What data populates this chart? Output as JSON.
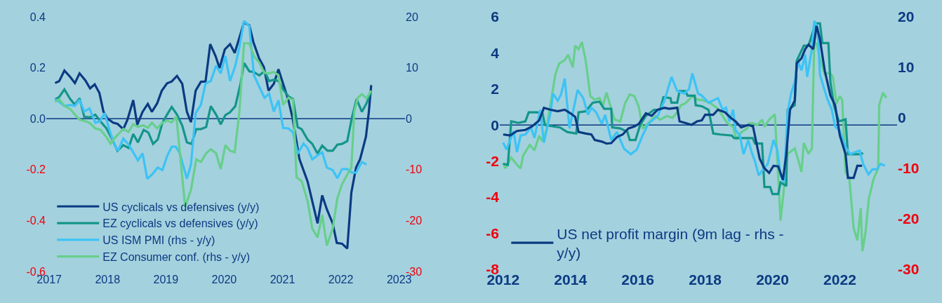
{
  "chart_data": [
    {
      "type": "line",
      "xlim": [
        2016.95,
        2023.1
      ],
      "xticks": [
        2017,
        2018,
        2019,
        2020,
        2021,
        2022,
        2023
      ],
      "ylim": [
        -0.6,
        0.4
      ],
      "yticks": [
        -0.6,
        -0.4,
        -0.2,
        {
          "value": 0,
          "label": "0.0"
        },
        0.2,
        0.4
      ],
      "y2lim": [
        -30,
        20
      ],
      "y2ticks": [
        -30,
        -20,
        -10,
        0,
        10,
        20
      ],
      "grid": false,
      "legend": "bottom left",
      "line_style": "solid",
      "ref_lines": [
        {
          "axis": "y",
          "value": 0,
          "color": "#0b3a82"
        }
      ],
      "series": [
        {
          "name": "US cyclicals vs defensives (y/y)",
          "color": "#0b3a82",
          "x": [
            2017.1,
            2017.17,
            2017.26,
            2017.36,
            2017.44,
            2017.52,
            2017.62,
            2017.7,
            2017.78,
            2017.86,
            2017.93,
            2018.0,
            2018.1,
            2018.17,
            2018.27,
            2018.34,
            2018.44,
            2018.51,
            2018.6,
            2018.69,
            2018.76,
            2018.85,
            2018.93,
            2019.02,
            2019.1,
            2019.19,
            2019.28,
            2019.36,
            2019.43,
            2019.51,
            2019.6,
            2019.68,
            2019.76,
            2019.85,
            2019.92,
            2020.01,
            2020.1,
            2020.18,
            2020.26,
            2020.34,
            2020.43,
            2020.5,
            2020.6,
            2020.68,
            2020.76,
            2020.85,
            2020.93,
            2021.01,
            2021.1,
            2021.17,
            2021.29,
            2021.43,
            2021.52,
            2021.6,
            2021.68,
            2021.76,
            2021.86,
            2021.93,
            2022.02,
            2022.11,
            2022.18,
            2022.26,
            2022.33,
            2022.43,
            2022.48,
            2022.52
          ],
          "values": [
            0.14,
            0.147,
            0.189,
            0.164,
            0.14,
            0.178,
            0.15,
            0.119,
            0.135,
            0.101,
            0.027,
            0.0,
            -0.016,
            -0.02,
            -0.041,
            -0.005,
            0.073,
            -0.024,
            0.027,
            0.058,
            0.027,
            0.06,
            0.11,
            0.139,
            0.146,
            0.168,
            0.137,
            0.027,
            -0.014,
            0.11,
            0.145,
            0.146,
            0.293,
            0.247,
            0.199,
            0.272,
            0.293,
            0.258,
            0.318,
            0.378,
            0.367,
            0.301,
            0.236,
            0.203,
            0.11,
            0.137,
            0.194,
            0.137,
            0.073,
            0.005,
            -0.159,
            -0.247,
            -0.334,
            -0.411,
            -0.301,
            -0.356,
            -0.411,
            -0.488,
            -0.491,
            -0.51,
            -0.29,
            -0.192,
            -0.159,
            -0.071,
            0.027,
            0.132
          ]
        },
        {
          "name": "EZ cyclicals vs defensives (y/y)",
          "color": "#14958a",
          "x": [
            2017.1,
            2017.17,
            2017.26,
            2017.36,
            2017.44,
            2017.52,
            2017.6,
            2017.69,
            2017.79,
            2017.88,
            2017.98,
            2018.07,
            2018.17,
            2018.27,
            2018.36,
            2018.44,
            2018.52,
            2018.62,
            2018.7,
            2018.78,
            2018.86,
            2018.94,
            2019.02,
            2019.1,
            2019.19,
            2019.28,
            2019.36,
            2019.44,
            2019.52,
            2019.6,
            2019.69,
            2019.77,
            2019.86,
            2019.94,
            2020.02,
            2020.1,
            2020.19,
            2020.28,
            2020.34,
            2020.43,
            2020.51,
            2020.6,
            2020.69,
            2020.77,
            2020.85,
            2020.93,
            2021.01,
            2021.1,
            2021.18,
            2021.26,
            2021.33,
            2021.43,
            2021.51,
            2021.6,
            2021.68,
            2021.77,
            2021.86,
            2021.94,
            2022.02,
            2022.11,
            2022.19,
            2022.27,
            2022.36,
            2022.44,
            2022.52
          ],
          "values": [
            0.075,
            0.085,
            0.115,
            0.077,
            0.055,
            0.08,
            0.008,
            0.005,
            0.016,
            -0.011,
            -0.038,
            -0.077,
            -0.126,
            -0.104,
            -0.115,
            -0.06,
            -0.093,
            -0.044,
            -0.055,
            -0.099,
            -0.082,
            -0.016,
            0.016,
            0.046,
            0.016,
            -0.027,
            -0.093,
            -0.099,
            -0.041,
            -0.041,
            -0.033,
            0.049,
            0.016,
            -0.022,
            0.014,
            0.025,
            0.049,
            0.137,
            0.219,
            0.186,
            0.183,
            0.17,
            0.186,
            0.148,
            0.153,
            0.148,
            0.115,
            0.088,
            0.077,
            -0.033,
            -0.042,
            -0.082,
            -0.099,
            -0.137,
            -0.106,
            -0.126,
            -0.126,
            -0.102,
            -0.099,
            -0.088,
            0.005,
            0.077,
            0.027,
            0.06,
            0.11
          ]
        },
        {
          "name": "US ISM PMI (rhs - y/y)",
          "color": "#3cc3f5",
          "axis": "y2",
          "x": [
            2017.1,
            2017.17,
            2017.26,
            2017.36,
            2017.44,
            2017.52,
            2017.6,
            2017.69,
            2017.79,
            2017.87,
            2017.95,
            2018.04,
            2018.12,
            2018.18,
            2018.27,
            2018.36,
            2018.44,
            2018.52,
            2018.6,
            2018.68,
            2018.76,
            2018.86,
            2018.94,
            2019.02,
            2019.1,
            2019.17,
            2019.24,
            2019.36,
            2019.43,
            2019.51,
            2019.6,
            2019.68,
            2019.77,
            2019.86,
            2019.94,
            2020.02,
            2020.1,
            2020.19,
            2020.26,
            2020.34,
            2020.43,
            2020.51,
            2020.6,
            2020.69,
            2020.77,
            2020.85,
            2020.93,
            2021.01,
            2021.1,
            2021.18,
            2021.26,
            2021.36,
            2021.43,
            2021.51,
            2021.6,
            2021.68,
            2021.76,
            2021.86,
            2021.94,
            2022.02,
            2022.11,
            2022.19,
            2022.26,
            2022.36,
            2022.44
          ],
          "values": [
            3.8,
            3.3,
            2.5,
            2.7,
            2.5,
            3.7,
            1.4,
            2.0,
            -0.8,
            -0.5,
            1.1,
            -2.5,
            -5.2,
            -6.3,
            -3.9,
            -5.1,
            -6.6,
            -8.2,
            -6.8,
            -11.8,
            -11.0,
            -9.6,
            -10.1,
            -7.4,
            -5.5,
            -5.5,
            -6.8,
            -11.8,
            -9.0,
            1.1,
            2.7,
            6.9,
            7.4,
            10.4,
            8.9,
            12.3,
            7.4,
            10.4,
            14.0,
            19.2,
            18.2,
            8.5,
            6.3,
            4.1,
            4.9,
            1.4,
            3.6,
            -1.8,
            -1.9,
            -2.7,
            -6.9,
            -4.9,
            -5.8,
            -8.0,
            -7.2,
            -6.6,
            -9.6,
            -10.1,
            -11.7,
            -9.9,
            -9.9,
            -10.6,
            -10.6,
            -8.5,
            -9.0
          ]
        },
        {
          "name": "EZ Consumer conf. (rhs - y/y)",
          "color": "#67cf8b",
          "axis": "y2",
          "x": [
            2017.1,
            2017.17,
            2017.26,
            2017.36,
            2017.44,
            2017.52,
            2017.62,
            2017.69,
            2017.79,
            2017.88,
            2017.98,
            2018.05,
            2018.12,
            2018.19,
            2018.27,
            2018.36,
            2018.44,
            2018.52,
            2018.61,
            2018.69,
            2018.76,
            2018.85,
            2018.94,
            2019.02,
            2019.1,
            2019.18,
            2019.33,
            2019.43,
            2019.52,
            2019.6,
            2019.69,
            2019.77,
            2019.86,
            2019.94,
            2020.02,
            2020.1,
            2020.18,
            2020.26,
            2020.34,
            2020.43,
            2020.51,
            2020.6,
            2020.69,
            2020.77,
            2020.85,
            2020.93,
            2021.01,
            2021.1,
            2021.18,
            2021.24,
            2021.33,
            2021.43,
            2021.51,
            2021.6,
            2021.68,
            2021.76,
            2021.86,
            2021.94,
            2022.02,
            2022.11,
            2022.18,
            2022.23,
            2022.29,
            2022.36,
            2022.44,
            2022.52
          ],
          "values": [
            3.3,
            3.8,
            2.5,
            1.9,
            0.8,
            -0.2,
            -0.5,
            -0.8,
            -1.9,
            -2.2,
            -3.6,
            -4.9,
            -3.8,
            -3.0,
            -2.0,
            -2.6,
            -1.1,
            -1.6,
            -1.3,
            -1.8,
            -0.8,
            -1.9,
            -0.8,
            -0.4,
            -0.7,
            0.4,
            -17.3,
            -14.0,
            -8.0,
            -8.5,
            -6.8,
            -6.0,
            -6.8,
            -9.9,
            -5.2,
            -6.3,
            -6.6,
            1.4,
            14.8,
            14.8,
            12.3,
            11.0,
            9.0,
            8.9,
            9.2,
            8.5,
            2.7,
            4.1,
            3.7,
            -11.5,
            -12.3,
            -16.2,
            -21.6,
            -23.3,
            -18.9,
            -24.9,
            -21.6,
            -15.6,
            -12.9,
            -11.0,
            -9.6,
            1.4,
            4.1,
            4.8,
            4.0,
            5.5
          ]
        }
      ]
    },
    {
      "type": "line",
      "xlim": [
        2011.9,
        2023.7
      ],
      "xticks": [
        2012,
        2014,
        2016,
        2018,
        2020,
        2022
      ],
      "ylim": [
        -8,
        6
      ],
      "yticks": [
        -8,
        -6,
        -4,
        -2,
        0,
        2,
        4,
        6
      ],
      "y2lim": [
        -30,
        20
      ],
      "y2ticks": [
        -30,
        -20,
        -10,
        0,
        10,
        20
      ],
      "grid": false,
      "legend": "bottom left",
      "line_style": "solid",
      "ref_lines": [
        {
          "axis": "y",
          "value": 0,
          "color": "#0b3a82"
        }
      ],
      "series": [
        {
          "color": "#67cf8b",
          "x": [
            2012.0,
            2012.07,
            2012.24,
            2012.41,
            2012.52,
            2012.59,
            2012.79,
            2012.93,
            2013.07,
            2013.17,
            2013.28,
            2013.41,
            2013.55,
            2013.66,
            2013.83,
            2013.93,
            2014.07,
            2014.14,
            2014.24,
            2014.34,
            2014.45,
            2014.59,
            2014.72,
            2014.86,
            2014.97,
            2015.07,
            2015.21,
            2015.31,
            2015.48,
            2015.62,
            2015.76,
            2015.9,
            2016.03,
            2016.14,
            2016.31,
            2016.52,
            2016.66,
            2016.86,
            2017.03,
            2017.17,
            2017.28,
            2017.41,
            2017.62,
            2017.79,
            2017.9,
            2018.17,
            2018.38,
            2018.66,
            2018.83,
            2018.93,
            2019.07,
            2019.24,
            2019.31,
            2019.41,
            2019.55,
            2019.69,
            2019.76,
            2019.9,
            2020.07,
            2020.24,
            2020.38,
            2020.45,
            2020.66,
            2020.76,
            2020.86,
            2020.93,
            2021.07,
            2021.17,
            2021.24,
            2021.31,
            2021.41,
            2021.55,
            2021.69,
            2021.79,
            2021.9,
            2022.0,
            2022.07,
            2022.17,
            2022.28,
            2022.41,
            2022.52,
            2022.62,
            2022.67,
            2022.76,
            2022.86,
            2023.0,
            2023.14,
            2023.17,
            2023.28,
            2023.38
          ],
          "values": [
            -2.1,
            -2.4,
            -1.8,
            -2.2,
            -2.4,
            -1.7,
            -1.1,
            -1.4,
            -0.6,
            -0.9,
            -0.3,
            1.2,
            2.8,
            3.4,
            3.6,
            3.9,
            3.2,
            4.4,
            4.2,
            4.6,
            3.6,
            1.6,
            1.4,
            1.5,
            1.1,
            1.8,
            0.9,
            0.3,
            0.2,
            1.2,
            1.7,
            1.6,
            1.0,
            -0.2,
            0.1,
            0.5,
            0.3,
            0.5,
            0.4,
            0.7,
            1.1,
            1.2,
            1.6,
            1.4,
            1.4,
            1.2,
            0.9,
            0.1,
            -0.1,
            -0.8,
            -0.4,
            -0.2,
            0.1,
            0.1,
            0.0,
            0.3,
            -0.1,
            0.3,
            0.6,
            -5.3,
            -2.8,
            -1.6,
            -1.3,
            -1.9,
            -2.6,
            -1.0,
            -1.6,
            -1.3,
            4.6,
            4.5,
            3.7,
            2.8,
            2.9,
            2.7,
            1.2,
            1.6,
            1.4,
            -2.6,
            -2.9,
            -5.7,
            -6.4,
            -4.6,
            -7.0,
            -6.0,
            -4.1,
            -3.0,
            -2.4,
            1.1,
            1.8,
            1.5
          ]
        },
        {
          "color": "#14958a",
          "axis": "y2",
          "x": [
            2012.0,
            2012.14,
            2012.24,
            2012.45,
            2012.66,
            2012.76,
            2013.0,
            2013.17,
            2013.24,
            2013.48,
            2013.69,
            2013.9,
            2014.17,
            2014.24,
            2014.45,
            2014.66,
            2014.86,
            2015.0,
            2015.21,
            2015.24,
            2015.48,
            2015.69,
            2015.76,
            2015.93,
            2016.07,
            2016.24,
            2016.48,
            2016.66,
            2016.76,
            2016.97,
            2017.0,
            2017.17,
            2017.24,
            2017.41,
            2017.48,
            2017.69,
            2017.72,
            2017.9,
            2018.1,
            2018.24,
            2018.45,
            2018.79,
            2018.86,
            2019.41,
            2019.48,
            2019.69,
            2019.76,
            2019.93,
            2020.0,
            2020.17,
            2020.24,
            2020.41,
            2020.45,
            2020.66,
            2020.72,
            2020.93,
            2021.07,
            2021.28,
            2021.41,
            2021.48,
            2021.66,
            2021.72,
            2021.83,
            2021.97,
            2022.17,
            2022.24,
            2022.59,
            2022.69
          ],
          "values": [
            -9.1,
            -9.3,
            -0.7,
            -1.0,
            -0.7,
            1.1,
            1.1,
            0.9,
            -1.4,
            -1.7,
            -1.9,
            -2.8,
            -3.1,
            1.1,
            1.3,
            3.0,
            3.2,
            1.8,
            1.8,
            -1.9,
            -2.1,
            -2.8,
            -4.4,
            -4.4,
            -1.4,
            0.4,
            1.6,
            1.6,
            4.1,
            3.9,
            3.0,
            3.0,
            5.3,
            5.3,
            4.4,
            4.4,
            2.5,
            2.3,
            1.6,
            -3.1,
            -3.3,
            -3.5,
            -4.0,
            -4.0,
            -5.1,
            -5.1,
            -13.7,
            -13.7,
            -15.1,
            -15.1,
            -12.8,
            -13.5,
            1.6,
            2.5,
            11.3,
            14.3,
            14.3,
            18.7,
            18.7,
            14.8,
            14.8,
            7.1,
            2.3,
            -0.7,
            -0.3,
            -7.2,
            -7.2,
            -7.0
          ]
        },
        {
          "color": "#3cc3f5",
          "axis": "y2",
          "x": [
            2012.0,
            2012.1,
            2012.31,
            2012.41,
            2012.52,
            2012.66,
            2012.83,
            2012.93,
            2013.1,
            2013.21,
            2013.41,
            2013.48,
            2013.62,
            2013.72,
            2013.83,
            2013.97,
            2014.1,
            2014.21,
            2014.38,
            2014.52,
            2014.62,
            2014.76,
            2014.93,
            2015.03,
            2015.21,
            2015.38,
            2015.59,
            2015.79,
            2015.97,
            2016.14,
            2016.31,
            2016.59,
            2016.79,
            2017.0,
            2017.17,
            2017.38,
            2017.52,
            2017.62,
            2017.79,
            2017.9,
            2018.1,
            2018.38,
            2018.52,
            2018.62,
            2018.72,
            2018.83,
            2018.9,
            2019.03,
            2019.14,
            2019.28,
            2019.38,
            2019.48,
            2019.59,
            2019.69,
            2019.86,
            2020.03,
            2020.14,
            2020.24,
            2020.34,
            2020.45,
            2020.55,
            2020.66,
            2020.76,
            2020.86,
            2020.97,
            2021.03,
            2021.17,
            2021.24,
            2021.34,
            2021.41,
            2021.62,
            2021.76,
            2021.86,
            2022.0,
            2022.17,
            2022.31,
            2022.45,
            2022.59,
            2022.69,
            2022.85,
            2022.97,
            2023.1,
            2023.21,
            2023.34
          ],
          "values": [
            -4.9,
            -6.3,
            -2.6,
            -6.8,
            -3.5,
            -3.3,
            -1.9,
            -4.0,
            1.6,
            -4.9,
            1.1,
            4.8,
            3.4,
            4.6,
            7.8,
            -2.1,
            2.0,
            5.5,
            3.9,
            0.6,
            2.0,
            1.1,
            -1.2,
            0.6,
            -4.4,
            -2.8,
            -6.1,
            -7.2,
            -6.3,
            -3.5,
            -1.2,
            0.4,
            3.4,
            8.1,
            5.3,
            4.8,
            5.7,
            8.8,
            4.8,
            4.4,
            3.0,
            3.9,
            1.6,
            2.0,
            -0.7,
            1.6,
            -2.4,
            -3.5,
            -7.2,
            -4.4,
            -6.8,
            -8.6,
            -11.4,
            -10.5,
            -9.1,
            -4.4,
            -6.3,
            -11.4,
            -12.8,
            1.1,
            4.8,
            7.1,
            11.1,
            9.4,
            12.5,
            8.1,
            13.6,
            19.2,
            17.8,
            8.5,
            3.9,
            1.6,
            -1.7,
            -2.6,
            -5.8,
            -7.2,
            -6.8,
            -6.5,
            -9.1,
            -11.2,
            -10.2,
            -10.2,
            -9.1,
            -9.5
          ]
        },
        {
          "name": "US net profit margin (9m lag - rhs - y/y)",
          "color": "#0b3a82",
          "axis": "y2",
          "x": [
            2012.0,
            2012.21,
            2012.41,
            2012.66,
            2012.86,
            2013.07,
            2013.21,
            2013.41,
            2013.62,
            2013.83,
            2014.0,
            2014.14,
            2014.24,
            2014.45,
            2014.62,
            2014.72,
            2014.93,
            2015.07,
            2015.21,
            2015.38,
            2015.55,
            2015.72,
            2015.9,
            2016.03,
            2016.24,
            2016.41,
            2016.59,
            2016.79,
            2016.93,
            2017.17,
            2017.24,
            2017.41,
            2017.59,
            2017.76,
            2017.9,
            2018.0,
            2018.24,
            2018.38,
            2018.59,
            2018.76,
            2018.9,
            2019.07,
            2019.28,
            2019.42,
            2019.52,
            2019.62,
            2019.76,
            2019.9,
            2020.03,
            2020.17,
            2020.31,
            2020.41,
            2020.52,
            2020.66,
            2020.72,
            2020.86,
            2020.97,
            2021.07,
            2021.21,
            2021.31,
            2021.41,
            2021.55,
            2021.72,
            2021.86,
            2022.0,
            2022.17,
            2022.24,
            2022.41,
            2022.52,
            2022.66
          ],
          "values": [
            -3.3,
            -3.5,
            -2.6,
            -2.4,
            -1.7,
            -0.5,
            2.0,
            1.6,
            1.3,
            1.6,
            0.9,
            0.2,
            -2.8,
            -3.1,
            -3.3,
            -4.4,
            -4.7,
            -5.1,
            -5.0,
            -3.8,
            -3.3,
            -2.1,
            -1.7,
            -1.2,
            0.9,
            0.4,
            1.6,
            2.0,
            1.8,
            2.0,
            -0.7,
            -1.0,
            -1.4,
            -0.7,
            -0.5,
            0.6,
            0.6,
            1.6,
            1.1,
            0.0,
            -0.7,
            -1.9,
            -1.4,
            -1.7,
            -4.9,
            -8.1,
            -10.0,
            -10.9,
            -9.5,
            -9.6,
            -12.3,
            -7.2,
            1.6,
            3.4,
            10.8,
            11.8,
            13.6,
            14.5,
            13.6,
            18.2,
            15.5,
            9.4,
            4.4,
            2.5,
            -3.5,
            -7.2,
            -11.9,
            -11.9,
            -9.5,
            -9.5
          ]
        }
      ]
    }
  ]
}
